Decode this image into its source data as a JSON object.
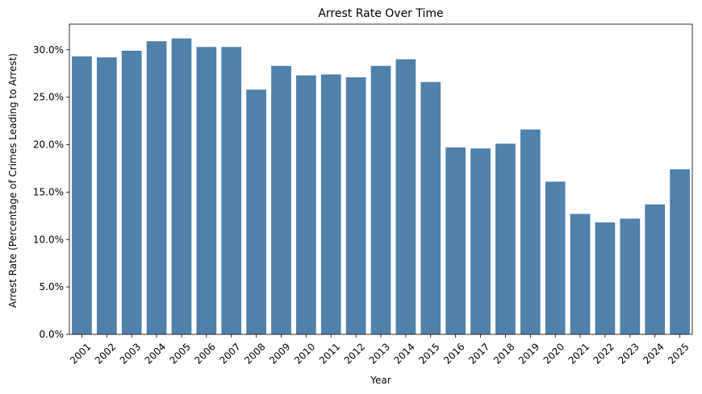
{
  "chart_data": {
    "type": "bar",
    "title": "Arrest Rate Over Time",
    "xlabel": "Year",
    "ylabel": "Arrest Rate (Percentage of Crimes Leading to Arrest)",
    "categories": [
      "2001",
      "2002",
      "2003",
      "2004",
      "2005",
      "2006",
      "2007",
      "2008",
      "2009",
      "2010",
      "2011",
      "2012",
      "2013",
      "2014",
      "2015",
      "2016",
      "2017",
      "2018",
      "2019",
      "2020",
      "2021",
      "2022",
      "2023",
      "2024",
      "2025"
    ],
    "values": [
      29.3,
      29.2,
      29.9,
      30.9,
      31.2,
      30.3,
      30.3,
      25.8,
      28.3,
      27.3,
      27.4,
      27.1,
      28.3,
      29.0,
      26.6,
      19.7,
      19.6,
      20.1,
      21.6,
      16.1,
      12.7,
      11.8,
      12.2,
      13.7,
      17.4
    ],
    "ylim": [
      0,
      32.7
    ],
    "yticks": [
      0,
      5,
      10,
      15,
      20,
      25,
      30
    ],
    "ytick_labels": [
      "0.0%",
      "5.0%",
      "10.0%",
      "15.0%",
      "20.0%",
      "25.0%",
      "30.0%"
    ],
    "bar_color": "#4f81aa",
    "grid": false,
    "legend": "none"
  }
}
